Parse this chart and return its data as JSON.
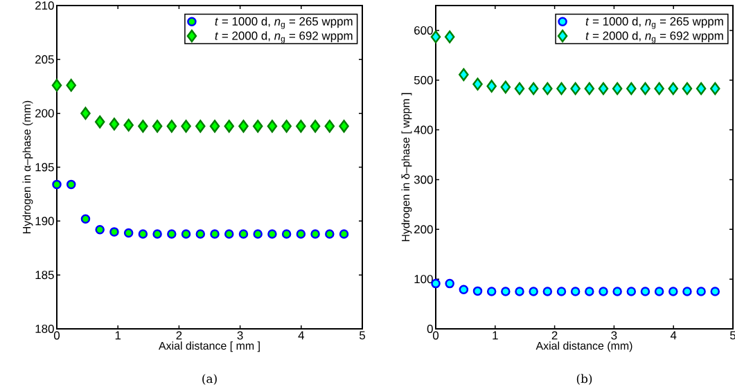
{
  "chart_data": [
    {
      "type": "scatter",
      "xlabel": "Axial distance [ mm ]",
      "ylabel": "Hydrogen in  α–phase (mm)",
      "annotations": [
        "(a)"
      ],
      "x": [
        0,
        0.235,
        0.47,
        0.705,
        0.94,
        1.175,
        1.41,
        1.645,
        1.88,
        2.115,
        2.35,
        2.585,
        2.82,
        3.055,
        3.29,
        3.525,
        3.76,
        3.995,
        4.23,
        4.465,
        4.7
      ],
      "series": [
        {
          "name": "*t* = 1000 d,    *n*$_{g}$ = 265 wppm",
          "color": "#0000ff",
          "marker": "circle",
          "values": [
            193.4,
            193.4,
            190.2,
            189.2,
            189.0,
            188.9,
            188.8,
            188.8,
            188.8,
            188.8,
            188.8,
            188.8,
            188.8,
            188.8,
            188.8,
            188.8,
            188.8,
            188.8,
            188.8,
            188.8,
            188.8
          ]
        },
        {
          "name": "*t* = 2000 d,    *n*$_{g}$ = 692 wppm",
          "color": "#008000",
          "marker": "diamond",
          "values": [
            202.6,
            202.6,
            200.0,
            199.2,
            199.0,
            198.9,
            198.8,
            198.8,
            198.8,
            198.8,
            198.8,
            198.8,
            198.8,
            198.8,
            198.8,
            198.8,
            198.8,
            198.8,
            198.8,
            198.8,
            198.8
          ]
        }
      ],
      "xlim": [
        0,
        5
      ],
      "ylim": [
        180,
        210
      ],
      "xticks": [
        0,
        1,
        2,
        3,
        4,
        5
      ],
      "yticks": [
        180,
        185,
        190,
        195,
        200,
        205,
        210
      ],
      "grid": false,
      "legend": "top right"
    },
    {
      "type": "scatter",
      "xlabel": "Axial distance (mm)",
      "ylabel": "Hydrogen in  δ–phase [ wppm ]",
      "annotations": [
        "(b)"
      ],
      "x": [
        0,
        0.235,
        0.47,
        0.705,
        0.94,
        1.175,
        1.41,
        1.645,
        1.88,
        2.115,
        2.35,
        2.585,
        2.82,
        3.055,
        3.29,
        3.525,
        3.76,
        3.995,
        4.23,
        4.465,
        4.7
      ],
      "series": [
        {
          "name": "*t* = 1000 d,    *n*$_{g}$ = 265 wppm",
          "color": "#0000ff",
          "marker": "circle",
          "values": [
            91,
            91,
            79,
            76,
            75,
            75,
            75,
            75,
            75,
            75,
            75,
            75,
            75,
            75,
            75,
            75,
            75,
            75,
            75,
            75,
            75
          ]
        },
        {
          "name": "*t* = 2000 d,    *n*$_{g}$ = 692 wppm",
          "color": "#008000",
          "marker": "diamond",
          "values": [
            587,
            587,
            511,
            492,
            488,
            486,
            483,
            483,
            483,
            483,
            483,
            483,
            483,
            483,
            483,
            483,
            483,
            483,
            483,
            483,
            483
          ]
        }
      ],
      "xlim": [
        0,
        5
      ],
      "ylim": [
        0,
        650
      ],
      "xticks": [
        0,
        1,
        2,
        3,
        4,
        5
      ],
      "yticks": [
        0,
        100,
        200,
        300,
        400,
        500,
        600
      ],
      "grid": false,
      "legend": "top right"
    }
  ]
}
